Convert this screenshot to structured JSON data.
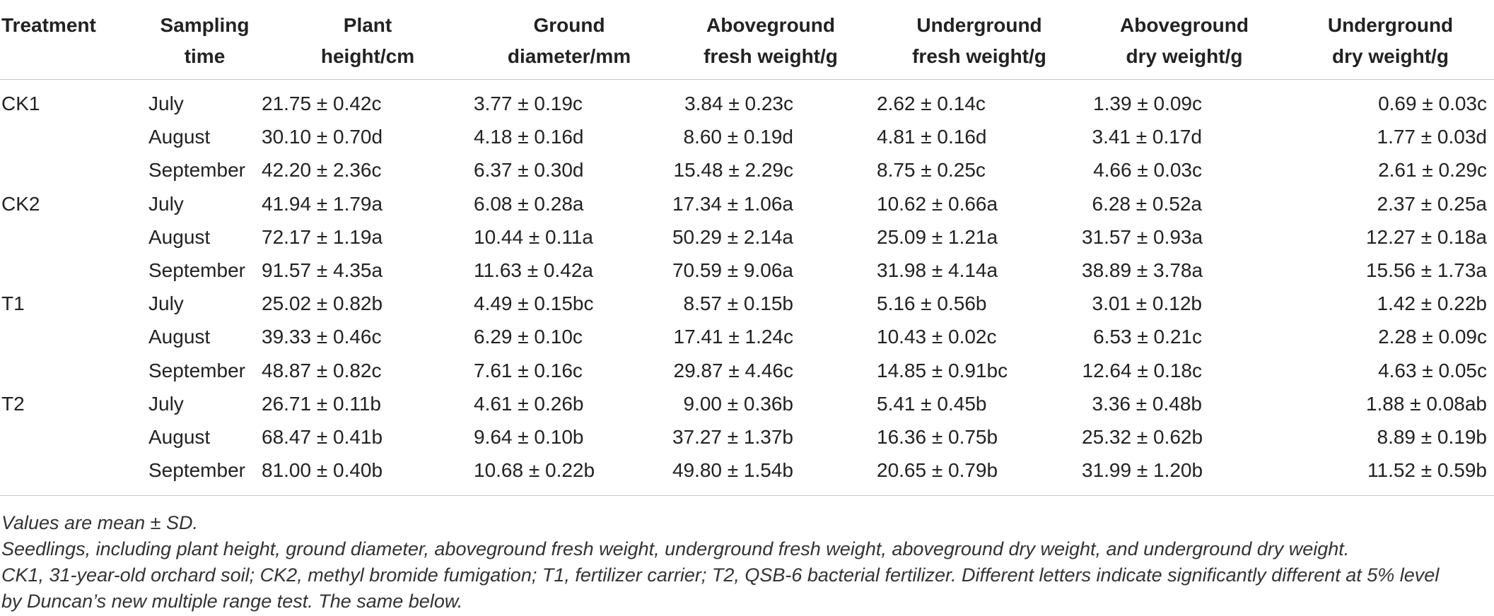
{
  "table": {
    "columns": [
      {
        "line1": "Treatment",
        "line2": ""
      },
      {
        "line1": "Sampling",
        "line2": "time"
      },
      {
        "line1": "Plant",
        "line2": "height/cm"
      },
      {
        "line1": "Ground",
        "line2": "diameter/mm"
      },
      {
        "line1": "Aboveground",
        "line2": "fresh weight/g"
      },
      {
        "line1": "Underground",
        "line2": "fresh weight/g"
      },
      {
        "line1": "Aboveground",
        "line2": "dry weight/g"
      },
      {
        "line1": "Underground",
        "line2": "dry weight/g"
      }
    ],
    "rows": [
      [
        "CK1",
        "July",
        "21.75 ± 0.42c",
        "3.77 ± 0.19c",
        "3.84 ± 0.23c",
        "2.62 ± 0.14c",
        "1.39 ± 0.09c",
        "0.69 ± 0.03c"
      ],
      [
        "",
        "August",
        "30.10 ± 0.70d",
        "4.18 ± 0.16d",
        "8.60 ± 0.19d",
        "4.81 ± 0.16d",
        "3.41 ± 0.17d",
        "1.77 ± 0.03d"
      ],
      [
        "",
        "September",
        "42.20 ± 2.36c",
        "6.37 ± 0.30d",
        "15.48 ± 2.29c",
        "8.75 ± 0.25c",
        "4.66 ± 0.03c",
        "2.61 ± 0.29c"
      ],
      [
        "CK2",
        "July",
        "41.94 ± 1.79a",
        "6.08 ± 0.28a",
        "17.34 ± 1.06a",
        "10.62 ± 0.66a",
        "6.28 ± 0.52a",
        "2.37 ± 0.25a"
      ],
      [
        "",
        "August",
        "72.17 ± 1.19a",
        "10.44 ± 0.11a",
        "50.29 ± 2.14a",
        "25.09 ± 1.21a",
        "31.57 ± 0.93a",
        "12.27 ± 0.18a"
      ],
      [
        "",
        "September",
        "91.57 ± 4.35a",
        "11.63 ± 0.42a",
        "70.59 ± 9.06a",
        "31.98 ± 4.14a",
        "38.89 ± 3.78a",
        "15.56 ± 1.73a"
      ],
      [
        "T1",
        "July",
        "25.02 ± 0.82b",
        "4.49 ± 0.15bc",
        "8.57 ± 0.15b",
        "5.16 ± 0.56b",
        "3.01 ± 0.12b",
        "1.42 ± 0.22b"
      ],
      [
        "",
        "August",
        "39.33 ± 0.46c",
        "6.29 ± 0.10c",
        "17.41 ± 1.24c",
        "10.43 ± 0.02c",
        "6.53 ± 0.21c",
        "2.28 ± 0.09c"
      ],
      [
        "",
        "September",
        "48.87 ± 0.82c",
        "7.61 ± 0.16c",
        "29.87 ± 4.46c",
        "14.85 ± 0.91bc",
        "12.64 ± 0.18c",
        "4.63 ± 0.05c"
      ],
      [
        "T2",
        "July",
        "26.71 ± 0.11b",
        "4.61 ± 0.26b",
        "9.00 ± 0.36b",
        "5.41 ± 0.45b",
        "3.36 ± 0.48b",
        "1.88 ± 0.08ab"
      ],
      [
        "",
        "August",
        "68.47 ± 0.41b",
        "9.64 ± 0.10b",
        "37.27 ± 1.37b",
        "16.36 ± 0.75b",
        "25.32 ± 0.62b",
        "8.89 ± 0.19b"
      ],
      [
        "",
        "September",
        "81.00 ± 0.40b",
        "10.68 ± 0.22b",
        "49.80 ± 1.54b",
        "20.65 ± 0.79b",
        "31.99 ± 1.20b",
        "11.52 ± 0.59b"
      ]
    ]
  },
  "notes": {
    "line1": "Values are mean ± SD.",
    "line2": "Seedlings, including plant height, ground diameter, aboveground fresh weight, underground fresh weight, aboveground dry weight, and underground dry weight.",
    "line3": "CK1, 31-year-old orchard soil; CK2, methyl bromide fumigation; T1, fertilizer carrier; T2, QSB-6 bacterial fertilizer. Different letters indicate significantly different at 5% level",
    "line4": "by Duncan’s new multiple range test. The same below."
  }
}
